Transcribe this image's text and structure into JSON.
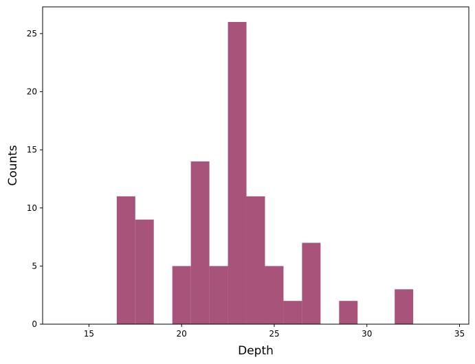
{
  "chart_data": {
    "type": "bar",
    "title": "",
    "xlabel": "Depth",
    "ylabel": "Counts",
    "xlim": [
      12.5,
      35.5
    ],
    "ylim": [
      0,
      27.3
    ],
    "bar_color": "#a8547a",
    "bin_width": 1.0,
    "x_ticks": [
      15,
      20,
      25,
      30,
      35
    ],
    "y_ticks": [
      0,
      5,
      10,
      15,
      20,
      25
    ],
    "bins": [
      {
        "x0": 16.5,
        "x1": 17.5,
        "count": 11
      },
      {
        "x0": 17.5,
        "x1": 18.5,
        "count": 9
      },
      {
        "x0": 19.5,
        "x1": 20.5,
        "count": 5
      },
      {
        "x0": 20.5,
        "x1": 21.5,
        "count": 14
      },
      {
        "x0": 21.5,
        "x1": 22.5,
        "count": 5
      },
      {
        "x0": 22.5,
        "x1": 23.5,
        "count": 26
      },
      {
        "x0": 23.5,
        "x1": 24.5,
        "count": 11
      },
      {
        "x0": 24.5,
        "x1": 25.5,
        "count": 5
      },
      {
        "x0": 25.5,
        "x1": 26.5,
        "count": 2
      },
      {
        "x0": 26.5,
        "x1": 27.5,
        "count": 7
      },
      {
        "x0": 28.5,
        "x1": 29.5,
        "count": 2
      },
      {
        "x0": 31.5,
        "x1": 32.5,
        "count": 3
      }
    ],
    "grid": false,
    "legend": "none"
  }
}
